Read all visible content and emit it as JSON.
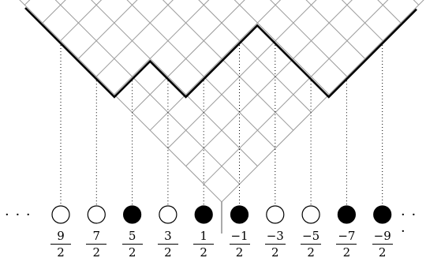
{
  "diagram": {
    "ellipsis_left": "· · ·",
    "ellipsis_right": "· · ·",
    "beads": [
      {
        "num": "9",
        "den": "2",
        "filled": false
      },
      {
        "num": "7",
        "den": "2",
        "filled": false
      },
      {
        "num": "5",
        "den": "2",
        "filled": true
      },
      {
        "num": "3",
        "den": "2",
        "filled": false
      },
      {
        "num": "1",
        "den": "2",
        "filled": true
      },
      {
        "num": "−1",
        "den": "2",
        "filled": true
      },
      {
        "num": "−3",
        "den": "2",
        "filled": false
      },
      {
        "num": "−5",
        "den": "2",
        "filled": false
      },
      {
        "num": "−7",
        "den": "2",
        "filled": true
      },
      {
        "num": "−9",
        "den": "2",
        "filled": true
      }
    ],
    "colors": {
      "filled": "#000000",
      "empty": "#ffffff",
      "grid": "#9a9a9a",
      "profile": "#000000"
    }
  }
}
